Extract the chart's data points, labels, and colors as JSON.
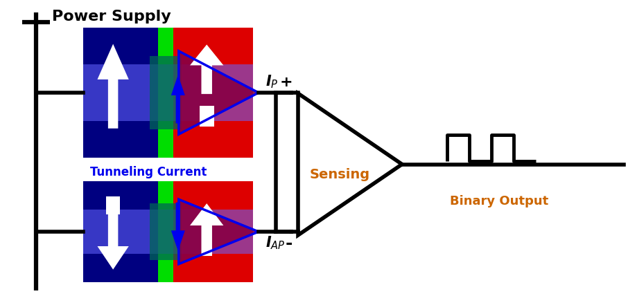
{
  "bg_color": "#ffffff",
  "line_color": "#000000",
  "line_width": 4.0,
  "dark_blue": "#000080",
  "green_color": "#00dd00",
  "red_color": "#dd0000",
  "purple_color": "#880044",
  "teal_color": "#006655",
  "blue_band": "#6666ff",
  "blue_arrow": "#0000ee",
  "text_power": "Power Supply",
  "text_tunneling": "Tunneling Current",
  "text_sensing": "Sensing",
  "text_binary": "Binary Output",
  "text_plus": "+",
  "text_minus": "-",
  "sensing_color": "#cc6600",
  "binary_color": "#cc6600"
}
